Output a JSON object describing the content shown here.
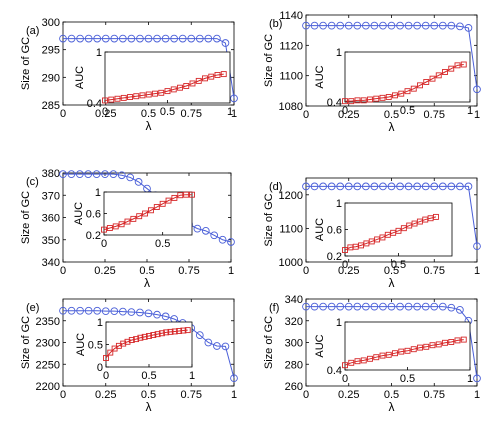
{
  "figure": {
    "xlabel": "λ",
    "ylabel": "Size of GC",
    "inset_ylabel": "AUC"
  },
  "chart_data": [
    {
      "type": "line",
      "panel_label": "(a)",
      "xlim": [
        0,
        1
      ],
      "ylim": [
        285,
        300
      ],
      "xticks": [
        0,
        0.25,
        0.5,
        0.75,
        1
      ],
      "xtick_labels": [
        "0",
        "0.25",
        "0.5",
        "0.75",
        "1"
      ],
      "yticks": [
        285,
        290,
        295,
        300
      ],
      "ytick_labels": [
        "285",
        "290",
        "295",
        "300"
      ],
      "main_series": {
        "color": "#4a5fd8",
        "marker": "circle",
        "x": [
          0,
          0.05,
          0.1,
          0.15,
          0.2,
          0.25,
          0.3,
          0.35,
          0.4,
          0.45,
          0.5,
          0.55,
          0.6,
          0.65,
          0.7,
          0.75,
          0.8,
          0.85,
          0.9,
          0.95,
          1
        ],
        "y": [
          297,
          297,
          297,
          297,
          297,
          297,
          297,
          297,
          297,
          297,
          297,
          297,
          297,
          297,
          297,
          297,
          297,
          297,
          297,
          296.2,
          286.2
        ]
      },
      "inset": {
        "xlim": [
          0,
          1
        ],
        "ylim": [
          0.4,
          1
        ],
        "xticks": [
          0,
          0.5,
          1
        ],
        "xtick_labels": [
          "0",
          "0.5",
          "1"
        ],
        "yticks": [
          0.4,
          1
        ],
        "ytick_labels": [
          "0.4",
          "1"
        ],
        "series": {
          "color": "#d62728",
          "marker": "square",
          "x": [
            0,
            0.05,
            0.1,
            0.15,
            0.2,
            0.25,
            0.3,
            0.35,
            0.4,
            0.45,
            0.5,
            0.55,
            0.6,
            0.65,
            0.7,
            0.75,
            0.8,
            0.85,
            0.9,
            0.95
          ],
          "y": [
            0.43,
            0.44,
            0.45,
            0.46,
            0.47,
            0.48,
            0.49,
            0.5,
            0.51,
            0.52,
            0.54,
            0.56,
            0.58,
            0.6,
            0.63,
            0.66,
            0.69,
            0.71,
            0.73,
            0.74
          ]
        }
      }
    },
    {
      "type": "line",
      "panel_label": "(b)",
      "xlim": [
        0,
        1
      ],
      "ylim": [
        1080,
        1140
      ],
      "xticks": [
        0,
        0.25,
        0.5,
        0.75,
        1
      ],
      "xtick_labels": [
        "0",
        "0.25",
        "0.5",
        "0.75",
        "1"
      ],
      "yticks": [
        1080,
        1100,
        1120,
        1140
      ],
      "ytick_labels": [
        "1080",
        "1100",
        "1120",
        "1140"
      ],
      "main_series": {
        "color": "#4a5fd8",
        "marker": "circle",
        "x": [
          0,
          0.05,
          0.1,
          0.15,
          0.2,
          0.25,
          0.3,
          0.35,
          0.4,
          0.45,
          0.5,
          0.55,
          0.6,
          0.65,
          0.7,
          0.75,
          0.8,
          0.85,
          0.9,
          0.95,
          1
        ],
        "y": [
          1133,
          1133,
          1133,
          1133,
          1133,
          1133,
          1133,
          1133,
          1133,
          1133,
          1133,
          1133,
          1133,
          1133,
          1133,
          1133,
          1133,
          1133,
          1132.5,
          1131.5,
          1091
        ]
      },
      "inset": {
        "xlim": [
          0,
          1
        ],
        "ylim": [
          0.4,
          1
        ],
        "xticks": [
          0,
          0.5,
          1
        ],
        "xtick_labels": [
          "0",
          "0.5",
          "1"
        ],
        "yticks": [
          0.4,
          1
        ],
        "ytick_labels": [
          "0.4",
          "1"
        ],
        "series": {
          "color": "#d62728",
          "marker": "square",
          "x": [
            0,
            0.05,
            0.1,
            0.15,
            0.2,
            0.25,
            0.3,
            0.35,
            0.4,
            0.45,
            0.5,
            0.55,
            0.6,
            0.65,
            0.7,
            0.75,
            0.8,
            0.85,
            0.9,
            0.95
          ],
          "y": [
            0.41,
            0.41,
            0.42,
            0.42,
            0.43,
            0.44,
            0.45,
            0.46,
            0.48,
            0.5,
            0.53,
            0.56,
            0.6,
            0.64,
            0.68,
            0.72,
            0.76,
            0.8,
            0.84,
            0.85
          ]
        }
      }
    },
    {
      "type": "line",
      "panel_label": "(c)",
      "xlim": [
        0,
        1
      ],
      "ylim": [
        340,
        380
      ],
      "xticks": [
        0,
        0.25,
        0.5,
        0.75,
        1
      ],
      "xtick_labels": [
        "0",
        "0.25",
        "0.5",
        "0.75",
        "1"
      ],
      "yticks": [
        340,
        350,
        360,
        370,
        380
      ],
      "ytick_labels": [
        "340",
        "350",
        "360",
        "370",
        "380"
      ],
      "main_series": {
        "color": "#4a5fd8",
        "marker": "circle",
        "x": [
          0,
          0.05,
          0.1,
          0.15,
          0.2,
          0.25,
          0.3,
          0.35,
          0.4,
          0.45,
          0.5,
          0.55,
          0.6,
          0.65,
          0.7,
          0.75,
          0.8,
          0.85,
          0.9,
          0.95,
          1
        ],
        "y": [
          379.5,
          379.5,
          379.5,
          379.5,
          379.5,
          379.5,
          379.5,
          379,
          378,
          376,
          373,
          370,
          367,
          365,
          361,
          357,
          355,
          354,
          352,
          350,
          349
        ]
      },
      "inset": {
        "xlim": [
          0,
          0.75
        ],
        "ylim": [
          0.2,
          1
        ],
        "xticks": [
          0,
          0.5
        ],
        "xtick_labels": [
          "0",
          "0.5"
        ],
        "yticks": [
          0.2,
          0.6,
          1
        ],
        "ytick_labels": [
          "0.2",
          "0.6",
          "1"
        ],
        "series": {
          "color": "#d62728",
          "marker": "square",
          "x": [
            0,
            0.05,
            0.1,
            0.15,
            0.2,
            0.25,
            0.3,
            0.35,
            0.4,
            0.45,
            0.5,
            0.55,
            0.6,
            0.65,
            0.7,
            0.75
          ],
          "y": [
            0.3,
            0.33,
            0.36,
            0.4,
            0.45,
            0.5,
            0.55,
            0.6,
            0.66,
            0.72,
            0.78,
            0.84,
            0.89,
            0.94,
            0.95,
            0.95
          ]
        }
      }
    },
    {
      "type": "line",
      "panel_label": "(d)",
      "xlim": [
        0,
        1
      ],
      "ylim": [
        1000,
        1250
      ],
      "xticks": [
        0,
        0.25,
        0.5,
        0.75,
        1
      ],
      "xtick_labels": [
        "0",
        "0.25",
        "0.5",
        "0.75",
        "1"
      ],
      "yticks": [
        1000,
        1100,
        1200
      ],
      "ytick_labels": [
        "1000",
        "1100",
        "1200"
      ],
      "main_series": {
        "color": "#4a5fd8",
        "marker": "circle",
        "x": [
          0,
          0.05,
          0.1,
          0.15,
          0.2,
          0.25,
          0.3,
          0.35,
          0.4,
          0.45,
          0.5,
          0.55,
          0.6,
          0.65,
          0.7,
          0.75,
          0.8,
          0.85,
          0.9,
          0.95,
          1
        ],
        "y": [
          1225,
          1225,
          1225,
          1225,
          1225,
          1225,
          1225,
          1225,
          1225,
          1225,
          1225,
          1225,
          1225,
          1225,
          1225,
          1225,
          1225,
          1225,
          1225,
          1225,
          1047
        ]
      },
      "inset": {
        "xlim": [
          0,
          1
        ],
        "ylim": [
          0.2,
          1
        ],
        "xticks": [
          0,
          0.5
        ],
        "xtick_labels": [
          "0",
          "0.5"
        ],
        "yticks": [
          0.2,
          0.6,
          1
        ],
        "ytick_labels": [
          "0.2",
          "0.6",
          "1"
        ],
        "series": {
          "color": "#d62728",
          "marker": "square",
          "x": [
            0,
            0.05,
            0.1,
            0.15,
            0.2,
            0.25,
            0.3,
            0.35,
            0.4,
            0.45,
            0.5,
            0.55,
            0.6,
            0.65,
            0.7,
            0.75,
            0.8,
            0.85
          ],
          "y": [
            0.29,
            0.33,
            0.34,
            0.36,
            0.39,
            0.42,
            0.45,
            0.48,
            0.52,
            0.55,
            0.58,
            0.62,
            0.66,
            0.69,
            0.72,
            0.75,
            0.77,
            0.79
          ]
        }
      }
    },
    {
      "type": "line",
      "panel_label": "(e)",
      "xlim": [
        0,
        1
      ],
      "ylim": [
        2200,
        2400
      ],
      "xticks": [
        0,
        0.25,
        0.5,
        0.75,
        1
      ],
      "xtick_labels": [
        "0",
        "0.25",
        "0.5",
        "0.75",
        "1"
      ],
      "yticks": [
        2200,
        2250,
        2300,
        2350
      ],
      "ytick_labels": [
        "2200",
        "2250",
        "2300",
        "2350"
      ],
      "main_series": {
        "color": "#4a5fd8",
        "marker": "circle",
        "x": [
          0,
          0.05,
          0.1,
          0.15,
          0.2,
          0.25,
          0.3,
          0.35,
          0.4,
          0.45,
          0.5,
          0.55,
          0.6,
          0.65,
          0.7,
          0.75,
          0.8,
          0.85,
          0.9,
          0.95,
          1
        ],
        "y": [
          2373,
          2373,
          2373,
          2373,
          2373,
          2372,
          2372,
          2371,
          2370,
          2369,
          2367,
          2364,
          2360,
          2354,
          2345,
          2333,
          2317,
          2300,
          2292,
          2291,
          2218
        ]
      },
      "inset": {
        "xlim": [
          0,
          1
        ],
        "ylim": [
          0,
          1
        ],
        "xticks": [
          0,
          0.5,
          1
        ],
        "xtick_labels": [
          "0",
          "0.5",
          "1"
        ],
        "yticks": [
          0,
          0.5,
          1
        ],
        "ytick_labels": [
          "0",
          "0.5",
          "1"
        ],
        "series": {
          "color": "#d62728",
          "marker": "square",
          "x": [
            0,
            0.05,
            0.1,
            0.15,
            0.2,
            0.25,
            0.3,
            0.35,
            0.4,
            0.45,
            0.5,
            0.55,
            0.6,
            0.65,
            0.7,
            0.75,
            0.8,
            0.85,
            0.9,
            0.95
          ],
          "y": [
            0.2,
            0.32,
            0.41,
            0.47,
            0.52,
            0.56,
            0.6,
            0.62,
            0.65,
            0.67,
            0.69,
            0.71,
            0.73,
            0.75,
            0.77,
            0.78,
            0.79,
            0.8,
            0.81,
            0.82
          ]
        }
      }
    },
    {
      "type": "line",
      "panel_label": "(f)",
      "xlim": [
        0,
        1
      ],
      "ylim": [
        260,
        340
      ],
      "xticks": [
        0,
        0.25,
        0.5,
        0.75,
        1
      ],
      "xtick_labels": [
        "0",
        "0.25",
        "0.5",
        "0.75",
        "1"
      ],
      "yticks": [
        260,
        280,
        300,
        320,
        340
      ],
      "ytick_labels": [
        "260",
        "280",
        "300",
        "320",
        "340"
      ],
      "main_series": {
        "color": "#4a5fd8",
        "marker": "circle",
        "x": [
          0,
          0.05,
          0.1,
          0.15,
          0.2,
          0.25,
          0.3,
          0.35,
          0.4,
          0.45,
          0.5,
          0.55,
          0.6,
          0.65,
          0.7,
          0.75,
          0.8,
          0.85,
          0.9,
          0.95,
          1
        ],
        "y": [
          333,
          333,
          333,
          333,
          333,
          333,
          333,
          333,
          333,
          333,
          333,
          333,
          333,
          333,
          333,
          333,
          333,
          332,
          330,
          320,
          267
        ]
      },
      "inset": {
        "xlim": [
          0,
          1
        ],
        "ylim": [
          0.4,
          1
        ],
        "xticks": [
          0,
          0.5,
          1
        ],
        "xtick_labels": [
          "0",
          "0.5",
          "1"
        ],
        "yticks": [
          0.4,
          1
        ],
        "ytick_labels": [
          "0.4",
          "1"
        ],
        "series": {
          "color": "#d62728",
          "marker": "square",
          "x": [
            0,
            0.05,
            0.1,
            0.15,
            0.2,
            0.25,
            0.3,
            0.35,
            0.4,
            0.45,
            0.5,
            0.55,
            0.6,
            0.65,
            0.7,
            0.75,
            0.8,
            0.85,
            0.9,
            0.95
          ],
          "y": [
            0.46,
            0.49,
            0.51,
            0.52,
            0.54,
            0.56,
            0.58,
            0.59,
            0.61,
            0.63,
            0.64,
            0.66,
            0.68,
            0.69,
            0.71,
            0.72,
            0.74,
            0.75,
            0.77,
            0.78
          ]
        }
      }
    }
  ]
}
